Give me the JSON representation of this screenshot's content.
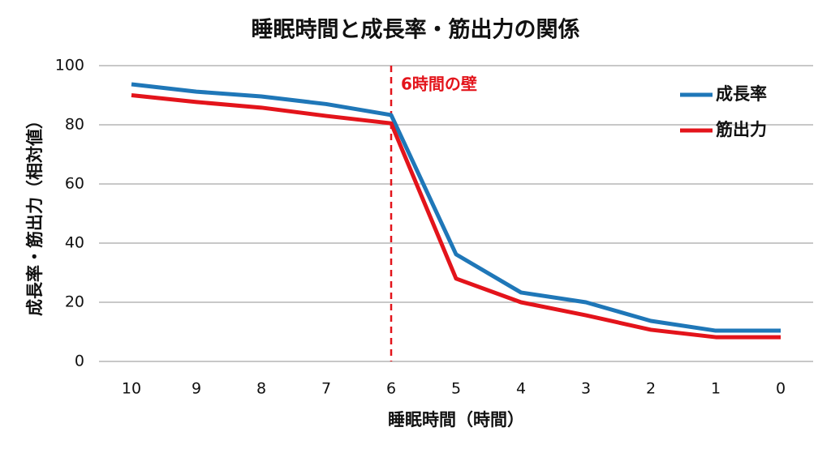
{
  "chart_data": {
    "type": "line",
    "title": "睡眠時間と成長率・筋出力の関係",
    "x_label": "睡眠時間（時間）",
    "y_label": "成長率・筋出力（相対値）",
    "x": [
      10,
      9,
      8,
      7,
      6,
      5,
      4,
      3,
      2,
      1,
      0
    ],
    "xlim": [
      10.5,
      -0.5
    ],
    "xticks": [
      10,
      9,
      8,
      7,
      6,
      5,
      4,
      3,
      2,
      1,
      0
    ],
    "ylim": [
      0,
      100
    ],
    "yticks": [
      0,
      20,
      40,
      60,
      80,
      100
    ],
    "grid": true,
    "legend": "upper right",
    "series": [
      {
        "name": "成長率",
        "color": "#1f77b8",
        "values": [
          93.7,
          91.2,
          89.6,
          87,
          83.3,
          36.2,
          23.3,
          20,
          13.7,
          10.4,
          10.4
        ]
      },
      {
        "name": "筋出力",
        "color": "#e3141b",
        "values": [
          90,
          87.7,
          85.8,
          83,
          80.5,
          28,
          20,
          15.6,
          10.7,
          8.2,
          8.2
        ]
      }
    ],
    "annotations": [
      {
        "text": "6時間の壁",
        "x": 6,
        "color": "#e3141b"
      }
    ]
  }
}
